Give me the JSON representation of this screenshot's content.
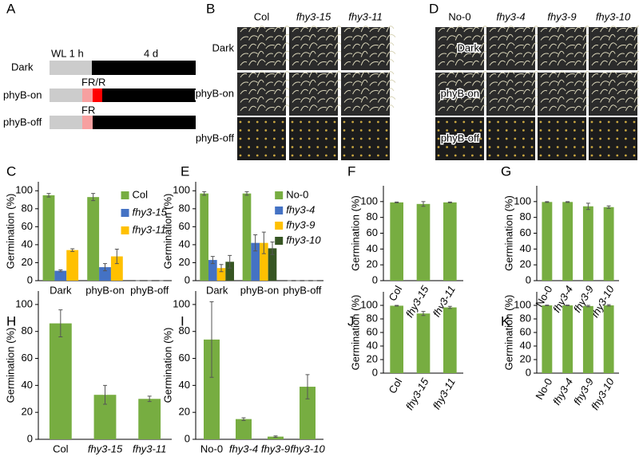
{
  "panel_a": {
    "label": "A",
    "wl": "WL 1 h",
    "duration": "4 d",
    "rows": [
      "Dark",
      "phyB-on",
      "phyB-off"
    ],
    "pulses": [
      "FR/R",
      "FR"
    ]
  },
  "panel_b": {
    "label": "B",
    "columns": [
      "Col",
      "fhy3-15",
      "fhy3-11"
    ],
    "rows": [
      "Dark",
      "phyB-on",
      "phyB-off"
    ]
  },
  "panel_d": {
    "label": "D",
    "columns": [
      "No-0",
      "fhy3-4",
      "fhy3-9",
      "fhy3-10"
    ],
    "rows": [
      "Dark",
      "phyB-on",
      "phyB-off"
    ]
  },
  "chart_data": [
    {
      "panel_label": "C",
      "type": "bar",
      "ylabel": "Germination (%)",
      "categories": [
        "Dark",
        "phyB-on",
        "phyB-off"
      ],
      "series": [
        {
          "name": "Col",
          "color": "#77ad41",
          "values": [
            95,
            93,
            0
          ],
          "errors": [
            2,
            4,
            0
          ]
        },
        {
          "name": "fhy3-15",
          "color": "#4472c4",
          "values": [
            11,
            15,
            0
          ],
          "errors": [
            1,
            4,
            0
          ]
        },
        {
          "name": "fhy3-11",
          "color": "#ffc000",
          "values": [
            34,
            27,
            0
          ],
          "errors": [
            1.5,
            8,
            0
          ]
        }
      ],
      "ylim": [
        0,
        110
      ],
      "yticks": [
        0,
        20,
        40,
        60,
        80,
        100
      ],
      "legend": "upper right"
    },
    {
      "panel_label": "E",
      "type": "bar",
      "ylabel": "Germination (%)",
      "categories": [
        "Dark",
        "phyB-on",
        "phyB-off"
      ],
      "series": [
        {
          "name": "No-0",
          "color": "#77ad41",
          "values": [
            97,
            97,
            0
          ],
          "errors": [
            2,
            2,
            0
          ]
        },
        {
          "name": "fhy3-4",
          "color": "#4472c4",
          "values": [
            23,
            42,
            0
          ],
          "errors": [
            4,
            9,
            0
          ]
        },
        {
          "name": "fhy3-9",
          "color": "#ffc000",
          "values": [
            14,
            42,
            0
          ],
          "errors": [
            4,
            12,
            0
          ]
        },
        {
          "name": "fhy3-10",
          "color": "#375623",
          "values": [
            21,
            36,
            0
          ],
          "errors": [
            7,
            7,
            0
          ]
        }
      ],
      "ylim": [
        0,
        110
      ],
      "yticks": [
        0,
        20,
        40,
        60,
        80,
        100
      ],
      "legend": "upper right"
    },
    {
      "panel_label": "F",
      "type": "bar",
      "ylabel": "Germination (%)",
      "categories": [
        "Col",
        "fhy3-15",
        "fhy3-11"
      ],
      "values": [
        99,
        97,
        99
      ],
      "errors": [
        0.5,
        3,
        0.5
      ],
      "color": "#77ad41",
      "ylim": [
        0,
        120
      ],
      "yticks": [
        0,
        20,
        40,
        60,
        80,
        100
      ]
    },
    {
      "panel_label": "G",
      "type": "bar",
      "ylabel": "Germination (%)",
      "categories": [
        "No-0",
        "fhy3-4",
        "fhy3-9",
        "fhy3-10"
      ],
      "values": [
        99.5,
        99.5,
        94,
        93
      ],
      "errors": [
        0.5,
        0.5,
        4,
        1.5
      ],
      "color": "#77ad41",
      "ylim": [
        0,
        120
      ],
      "yticks": [
        0,
        20,
        40,
        60,
        80,
        100
      ]
    },
    {
      "panel_label": "H",
      "type": "bar",
      "ylabel": "Germination (%)",
      "categories": [
        "Col",
        "fhy3-15",
        "fhy3-11"
      ],
      "values": [
        86,
        33,
        30
      ],
      "errors": [
        10,
        7,
        2
      ],
      "color": "#77ad41",
      "ylim": [
        0,
        110
      ],
      "yticks": [
        0,
        20,
        40,
        60,
        80,
        100
      ]
    },
    {
      "panel_label": "I",
      "type": "bar",
      "ylabel": "Germination (%)",
      "categories": [
        "No-0",
        "fhy3-4",
        "fhy3-9",
        "fhy3-10"
      ],
      "values": [
        74,
        15,
        2,
        39
      ],
      "errors": [
        28,
        1,
        0.5,
        9
      ],
      "color": "#77ad41",
      "ylim": [
        0,
        110
      ],
      "yticks": [
        0,
        20,
        40,
        60,
        80,
        100
      ]
    },
    {
      "panel_label": "J",
      "type": "bar",
      "ylabel": "Germination (%)",
      "categories": [
        "Col",
        "fhy3-15",
        "fhy3-11"
      ],
      "values": [
        99.5,
        88,
        97
      ],
      "errors": [
        0.5,
        3,
        1.5
      ],
      "color": "#77ad41",
      "ylim": [
        0,
        120
      ],
      "yticks": [
        0,
        20,
        40,
        60,
        80,
        100
      ]
    },
    {
      "panel_label": "K",
      "type": "bar",
      "ylabel": "Germination (%)",
      "categories": [
        "No-0",
        "fhy3-4",
        "fhy3-9",
        "fhy3-10"
      ],
      "values": [
        100,
        100,
        99,
        100
      ],
      "errors": [
        0.5,
        0.5,
        1,
        1
      ],
      "color": "#77ad41",
      "ylim": [
        0,
        120
      ],
      "yticks": [
        0,
        20,
        40,
        60,
        80,
        100
      ]
    }
  ]
}
